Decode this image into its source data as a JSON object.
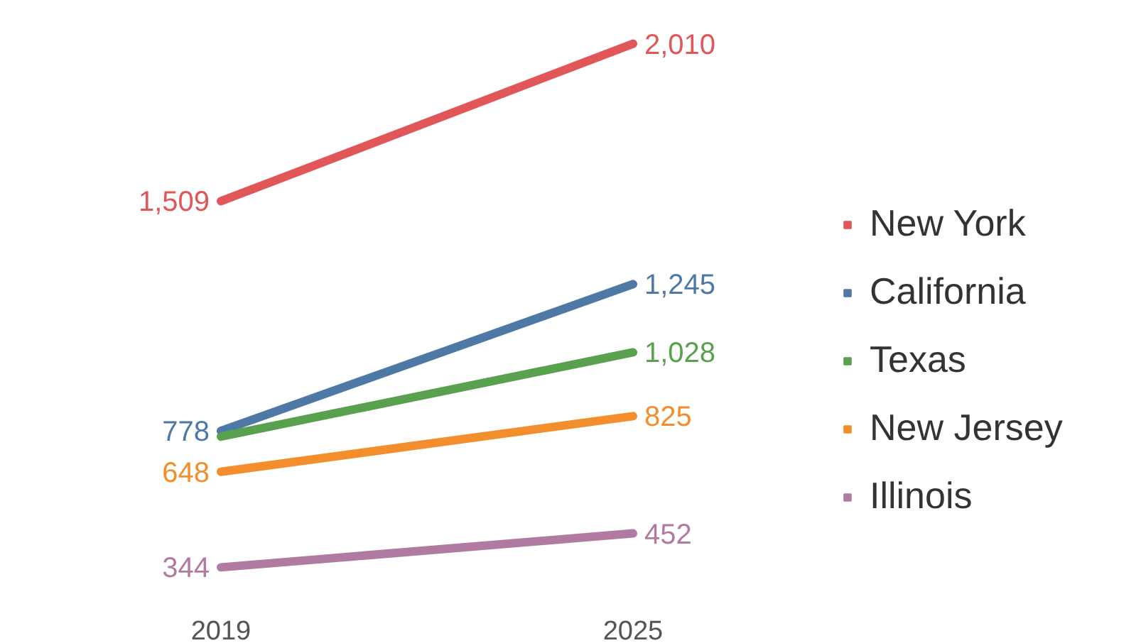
{
  "chart_data": {
    "type": "line",
    "categories": [
      "2019",
      "2025"
    ],
    "legend": "right",
    "grid": false,
    "series": [
      {
        "name": "New York",
        "color": "#e15759",
        "values": [
          1509,
          2010
        ],
        "value_labels": [
          "1,509",
          "2,010"
        ]
      },
      {
        "name": "California",
        "color": "#4e79a7",
        "values": [
          778,
          1245
        ],
        "value_labels": [
          "778",
          "1,245"
        ]
      },
      {
        "name": "Texas",
        "color": "#59a14f",
        "values": [
          760,
          1028
        ],
        "value_labels": [
          null,
          "1,028"
        ]
      },
      {
        "name": "New Jersey",
        "color": "#f28e2b",
        "values": [
          648,
          825
        ],
        "value_labels": [
          "648",
          "825"
        ]
      },
      {
        "name": "Illinois",
        "color": "#b07aa1",
        "values": [
          344,
          452
        ],
        "value_labels": [
          "344",
          "452"
        ]
      }
    ]
  }
}
